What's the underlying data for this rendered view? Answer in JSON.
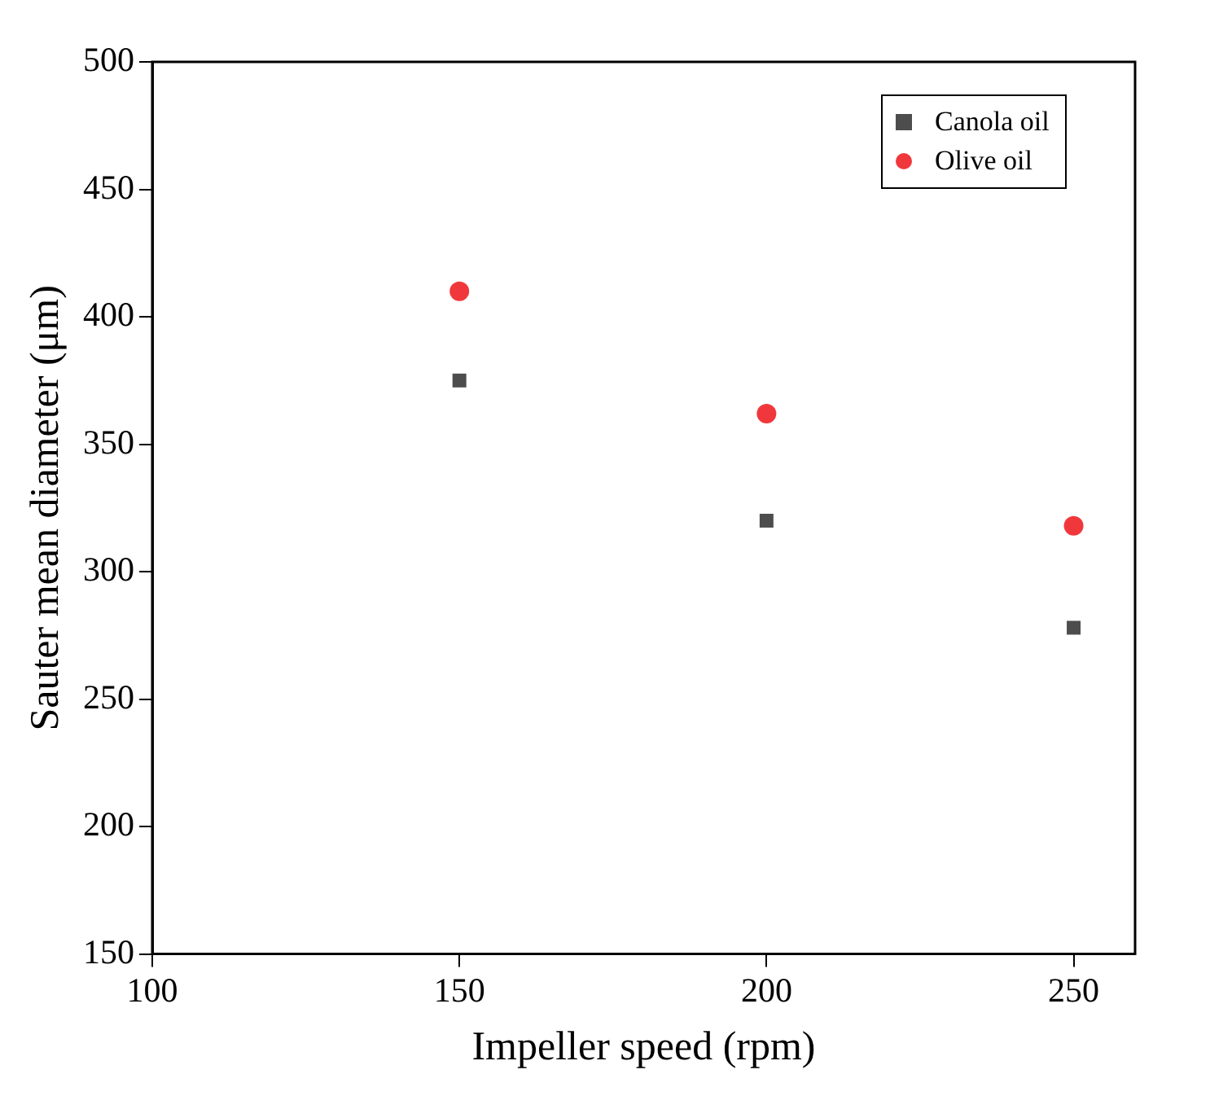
{
  "chart_data": {
    "type": "scatter",
    "xlabel": "Impeller speed (rpm)",
    "ylabel": "Sauter mean diameter (μm)",
    "x": [
      150,
      200,
      250
    ],
    "series": [
      {
        "name": "Canola oil",
        "color": "#4d4d4d",
        "marker": "square",
        "values": [
          375,
          320,
          278
        ]
      },
      {
        "name": "Olive oil",
        "color": "#f0383c",
        "marker": "circle",
        "values": [
          410,
          362,
          318
        ]
      }
    ],
    "xlim": [
      100,
      260
    ],
    "xticks": [
      100,
      150,
      200,
      250
    ],
    "ylim": [
      150,
      500
    ],
    "yticks": [
      150,
      200,
      250,
      300,
      350,
      400,
      450,
      500
    ],
    "legend": "top right"
  }
}
